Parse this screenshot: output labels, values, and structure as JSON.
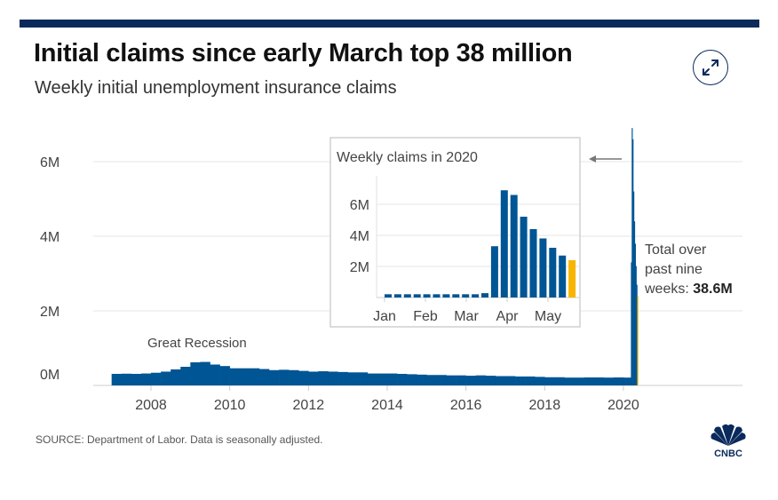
{
  "header": {
    "title": "Initial claims since early March top 38 million",
    "subtitle": "Weekly initial unemployment insurance claims"
  },
  "expand_icon": "expand-arrows-icon",
  "source": "SOURCE: Department of Labor. Data is seasonally adjusted.",
  "logo_text": "CNBC",
  "colors": {
    "bar": "#005594",
    "highlight": "#f7b500",
    "topbar": "#0a2a5c",
    "grid": "#e6e6e6"
  },
  "annotation": {
    "line1": "Total over",
    "line2": "past nine",
    "line3_prefix": "weeks: ",
    "line3_value": "38.6M"
  },
  "chart_data": [
    {
      "type": "area",
      "title": "Weekly initial unemployment insurance claims",
      "xlabel": "",
      "ylabel": "",
      "ylim": [
        0,
        7
      ],
      "xlim": [
        2006,
        2023.2
      ],
      "y_ticks": [
        {
          "v": 0,
          "label": "0M"
        },
        {
          "v": 2,
          "label": "2M"
        },
        {
          "v": 4,
          "label": "4M"
        },
        {
          "v": 6,
          "label": "6M"
        }
      ],
      "x_ticks": [
        {
          "v": 2008,
          "label": "2008"
        },
        {
          "v": 2010,
          "label": "2010"
        },
        {
          "v": 2012,
          "label": "2012"
        },
        {
          "v": 2014,
          "label": "2014"
        },
        {
          "v": 2016,
          "label": "2016"
        },
        {
          "v": 2018,
          "label": "2018"
        },
        {
          "v": 2020,
          "label": "2020"
        }
      ],
      "annotations": [
        {
          "text": "Great Recession",
          "x": 2009.2
        }
      ],
      "series": [
        {
          "name": "Initial claims (M)",
          "x": [
            2007.0,
            2007.25,
            2007.5,
            2007.75,
            2008.0,
            2008.25,
            2008.5,
            2008.75,
            2009.0,
            2009.25,
            2009.5,
            2009.75,
            2010.0,
            2010.25,
            2010.5,
            2010.75,
            2011.0,
            2011.25,
            2011.5,
            2011.75,
            2012.0,
            2012.25,
            2012.5,
            2012.75,
            2013.0,
            2013.25,
            2013.5,
            2013.75,
            2014.0,
            2014.25,
            2014.5,
            2014.75,
            2015.0,
            2015.25,
            2015.5,
            2015.75,
            2016.0,
            2016.25,
            2016.5,
            2016.75,
            2017.0,
            2017.25,
            2017.5,
            2017.75,
            2018.0,
            2018.25,
            2018.5,
            2018.75,
            2019.0,
            2019.25,
            2019.5,
            2019.75,
            2020.0,
            2020.19,
            2020.21,
            2020.23,
            2020.25,
            2020.27,
            2020.29,
            2020.31,
            2020.33,
            2020.35,
            2020.37
          ],
          "y": [
            0.31,
            0.315,
            0.31,
            0.32,
            0.34,
            0.37,
            0.43,
            0.5,
            0.62,
            0.63,
            0.56,
            0.52,
            0.46,
            0.46,
            0.46,
            0.44,
            0.41,
            0.42,
            0.41,
            0.39,
            0.37,
            0.38,
            0.37,
            0.36,
            0.35,
            0.35,
            0.32,
            0.32,
            0.32,
            0.31,
            0.3,
            0.29,
            0.28,
            0.28,
            0.27,
            0.27,
            0.26,
            0.27,
            0.26,
            0.25,
            0.25,
            0.24,
            0.24,
            0.23,
            0.22,
            0.22,
            0.21,
            0.21,
            0.215,
            0.215,
            0.21,
            0.215,
            0.21,
            3.3,
            6.9,
            6.6,
            5.2,
            4.4,
            3.8,
            3.2,
            2.7,
            2.4,
            0.0
          ]
        }
      ]
    },
    {
      "type": "bar",
      "title": "Weekly claims in 2020",
      "ylim": [
        0,
        7.5
      ],
      "y_ticks": [
        {
          "v": 2,
          "label": "2M"
        },
        {
          "v": 4,
          "label": "4M"
        },
        {
          "v": 6,
          "label": "6M"
        }
      ],
      "x_ticks": [
        {
          "i": 0,
          "label": "Jan"
        },
        {
          "i": 4,
          "label": "Feb"
        },
        {
          "i": 8,
          "label": "Mar"
        },
        {
          "i": 12,
          "label": "Apr"
        },
        {
          "i": 16,
          "label": "May"
        }
      ],
      "values": [
        0.21,
        0.21,
        0.21,
        0.21,
        0.21,
        0.21,
        0.21,
        0.21,
        0.21,
        0.21,
        0.28,
        3.3,
        6.9,
        6.6,
        5.2,
        4.4,
        3.8,
        3.2,
        2.7,
        2.4
      ],
      "highlight_index": 19
    }
  ]
}
